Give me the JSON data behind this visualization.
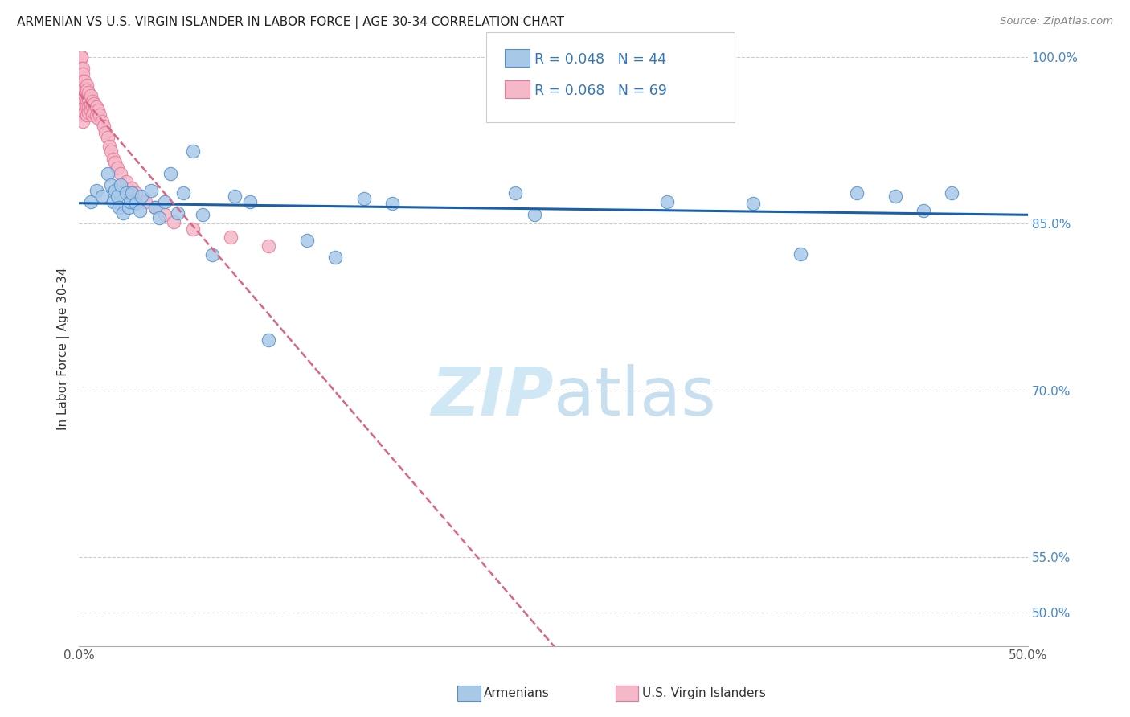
{
  "title": "ARMENIAN VS U.S. VIRGIN ISLANDER IN LABOR FORCE | AGE 30-34 CORRELATION CHART",
  "source": "Source: ZipAtlas.com",
  "ylabel_left": "In Labor Force | Age 30-34",
  "xmin": 0.0,
  "xmax": 0.5,
  "ymin": 0.47,
  "ymax": 1.005,
  "xticks": [
    0.0,
    0.05,
    0.1,
    0.15,
    0.2,
    0.25,
    0.3,
    0.35,
    0.4,
    0.45,
    0.5
  ],
  "yticks_right": [
    0.5,
    0.55,
    0.7,
    0.85,
    1.0
  ],
  "ytick_labels_right": [
    "50.0%",
    "55.0%",
    "70.0%",
    "85.0%",
    "100.0%"
  ],
  "legend_armenians_label": "Armenians",
  "legend_vi_label": "U.S. Virgin Islanders",
  "r_armenians": "R = 0.048",
  "n_armenians": "N = 44",
  "r_vi": "R = 0.068",
  "n_vi": "N = 69",
  "blue_color": "#a8c8e8",
  "pink_color": "#f4b8c8",
  "blue_edge_color": "#5590c8",
  "pink_edge_color": "#e87898",
  "blue_line_color": "#1a5fa8",
  "pink_line_color": "#d86888",
  "watermark_color": "#d0e8f5",
  "armenians_x": [
    0.006,
    0.009,
    0.012,
    0.015,
    0.017,
    0.018,
    0.019,
    0.02,
    0.021,
    0.022,
    0.023,
    0.025,
    0.026,
    0.027,
    0.028,
    0.03,
    0.032,
    0.033,
    0.038,
    0.04,
    0.042,
    0.045,
    0.048,
    0.052,
    0.055,
    0.06,
    0.065,
    0.07,
    0.082,
    0.09,
    0.1,
    0.12,
    0.135,
    0.15,
    0.165,
    0.23,
    0.24,
    0.31,
    0.355,
    0.38,
    0.41,
    0.43,
    0.445,
    0.46
  ],
  "armenians_y": [
    0.87,
    0.88,
    0.875,
    0.895,
    0.885,
    0.87,
    0.88,
    0.875,
    0.865,
    0.885,
    0.86,
    0.878,
    0.865,
    0.87,
    0.878,
    0.868,
    0.862,
    0.875,
    0.88,
    0.865,
    0.855,
    0.87,
    0.895,
    0.86,
    0.878,
    0.915,
    0.858,
    0.822,
    0.875,
    0.87,
    0.745,
    0.835,
    0.82,
    0.873,
    0.868,
    0.878,
    0.858,
    0.87,
    0.868,
    0.823,
    0.878,
    0.875,
    0.862,
    0.878
  ],
  "vi_x": [
    0.001,
    0.001,
    0.001,
    0.001,
    0.001,
    0.001,
    0.001,
    0.001,
    0.001,
    0.001,
    0.001,
    0.002,
    0.002,
    0.002,
    0.002,
    0.002,
    0.002,
    0.002,
    0.002,
    0.002,
    0.002,
    0.003,
    0.003,
    0.003,
    0.003,
    0.003,
    0.003,
    0.004,
    0.004,
    0.004,
    0.004,
    0.004,
    0.005,
    0.005,
    0.005,
    0.005,
    0.006,
    0.006,
    0.006,
    0.007,
    0.007,
    0.007,
    0.008,
    0.008,
    0.009,
    0.009,
    0.01,
    0.01,
    0.011,
    0.012,
    0.013,
    0.014,
    0.015,
    0.016,
    0.017,
    0.018,
    0.019,
    0.02,
    0.022,
    0.025,
    0.028,
    0.03,
    0.035,
    0.04,
    0.045,
    0.05,
    0.06,
    0.08,
    0.1
  ],
  "vi_y": [
    1.0,
    1.0,
    1.0,
    0.99,
    0.985,
    0.98,
    0.975,
    0.97,
    0.965,
    0.96,
    0.955,
    0.99,
    0.985,
    0.978,
    0.972,
    0.968,
    0.962,
    0.958,
    0.952,
    0.948,
    0.942,
    0.978,
    0.972,
    0.965,
    0.96,
    0.955,
    0.95,
    0.975,
    0.97,
    0.96,
    0.955,
    0.948,
    0.968,
    0.962,
    0.955,
    0.95,
    0.965,
    0.958,
    0.952,
    0.96,
    0.955,
    0.948,
    0.958,
    0.95,
    0.955,
    0.948,
    0.952,
    0.945,
    0.948,
    0.942,
    0.938,
    0.932,
    0.928,
    0.92,
    0.915,
    0.908,
    0.905,
    0.9,
    0.895,
    0.888,
    0.882,
    0.878,
    0.87,
    0.865,
    0.858,
    0.852,
    0.845,
    0.838,
    0.83
  ]
}
